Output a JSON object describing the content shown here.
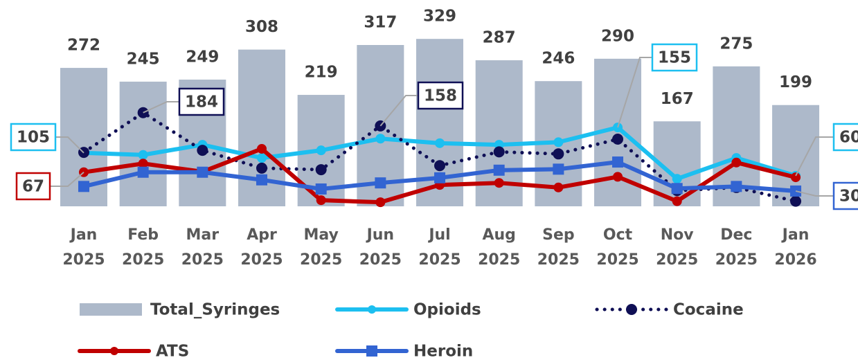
{
  "chart_data": {
    "type": "combo",
    "categories": [
      "Jan 2025",
      "Feb 2025",
      "Mar 2025",
      "Apr 2025",
      "May 2025",
      "Jun 2025",
      "Jul 2025",
      "Aug 2025",
      "Sep 2025",
      "Oct 2025",
      "Nov 2025",
      "Dec 2025",
      "Jan 2026"
    ],
    "ylim": [
      0,
      400
    ],
    "series": [
      {
        "name": "Total_Syringes",
        "type": "bar",
        "color": "#adb9ca",
        "values": [
          272,
          245,
          249,
          308,
          219,
          317,
          329,
          287,
          246,
          290,
          167,
          275,
          199
        ]
      },
      {
        "name": "Opioids",
        "type": "line",
        "color": "#1cbff0",
        "marker": "circle",
        "values": [
          105,
          101,
          121,
          95,
          110,
          133,
          124,
          121,
          126,
          155,
          54,
          95,
          60
        ],
        "value_labels": [
          "105",
          null,
          null,
          null,
          null,
          null,
          null,
          null,
          null,
          "155",
          null,
          null,
          "60"
        ]
      },
      {
        "name": "Cocaine",
        "type": "line",
        "style": "dotted",
        "color": "#0f0f55",
        "marker": "circle",
        "values": [
          106,
          184,
          110,
          75,
          72,
          158,
          80,
          107,
          103,
          132,
          31,
          37,
          10
        ],
        "value_labels": [
          null,
          "184",
          null,
          null,
          null,
          "158",
          null,
          null,
          null,
          null,
          null,
          null,
          null
        ]
      },
      {
        "name": "ATS",
        "type": "line",
        "color": "#c00000",
        "marker": "circle",
        "values": [
          67,
          84,
          68,
          113,
          12,
          8,
          42,
          46,
          37,
          58,
          10,
          86,
          57
        ],
        "value_labels": [
          "67",
          null,
          null,
          null,
          null,
          null,
          null,
          null,
          null,
          null,
          null,
          null,
          null
        ]
      },
      {
        "name": "Heroin",
        "type": "line",
        "color": "#3264d2",
        "marker": "square",
        "values": [
          39,
          67,
          67,
          52,
          34,
          46,
          56,
          71,
          73,
          87,
          35,
          39,
          30
        ],
        "value_labels": [
          null,
          null,
          null,
          null,
          null,
          null,
          null,
          null,
          null,
          null,
          null,
          null,
          "30"
        ]
      }
    ]
  }
}
